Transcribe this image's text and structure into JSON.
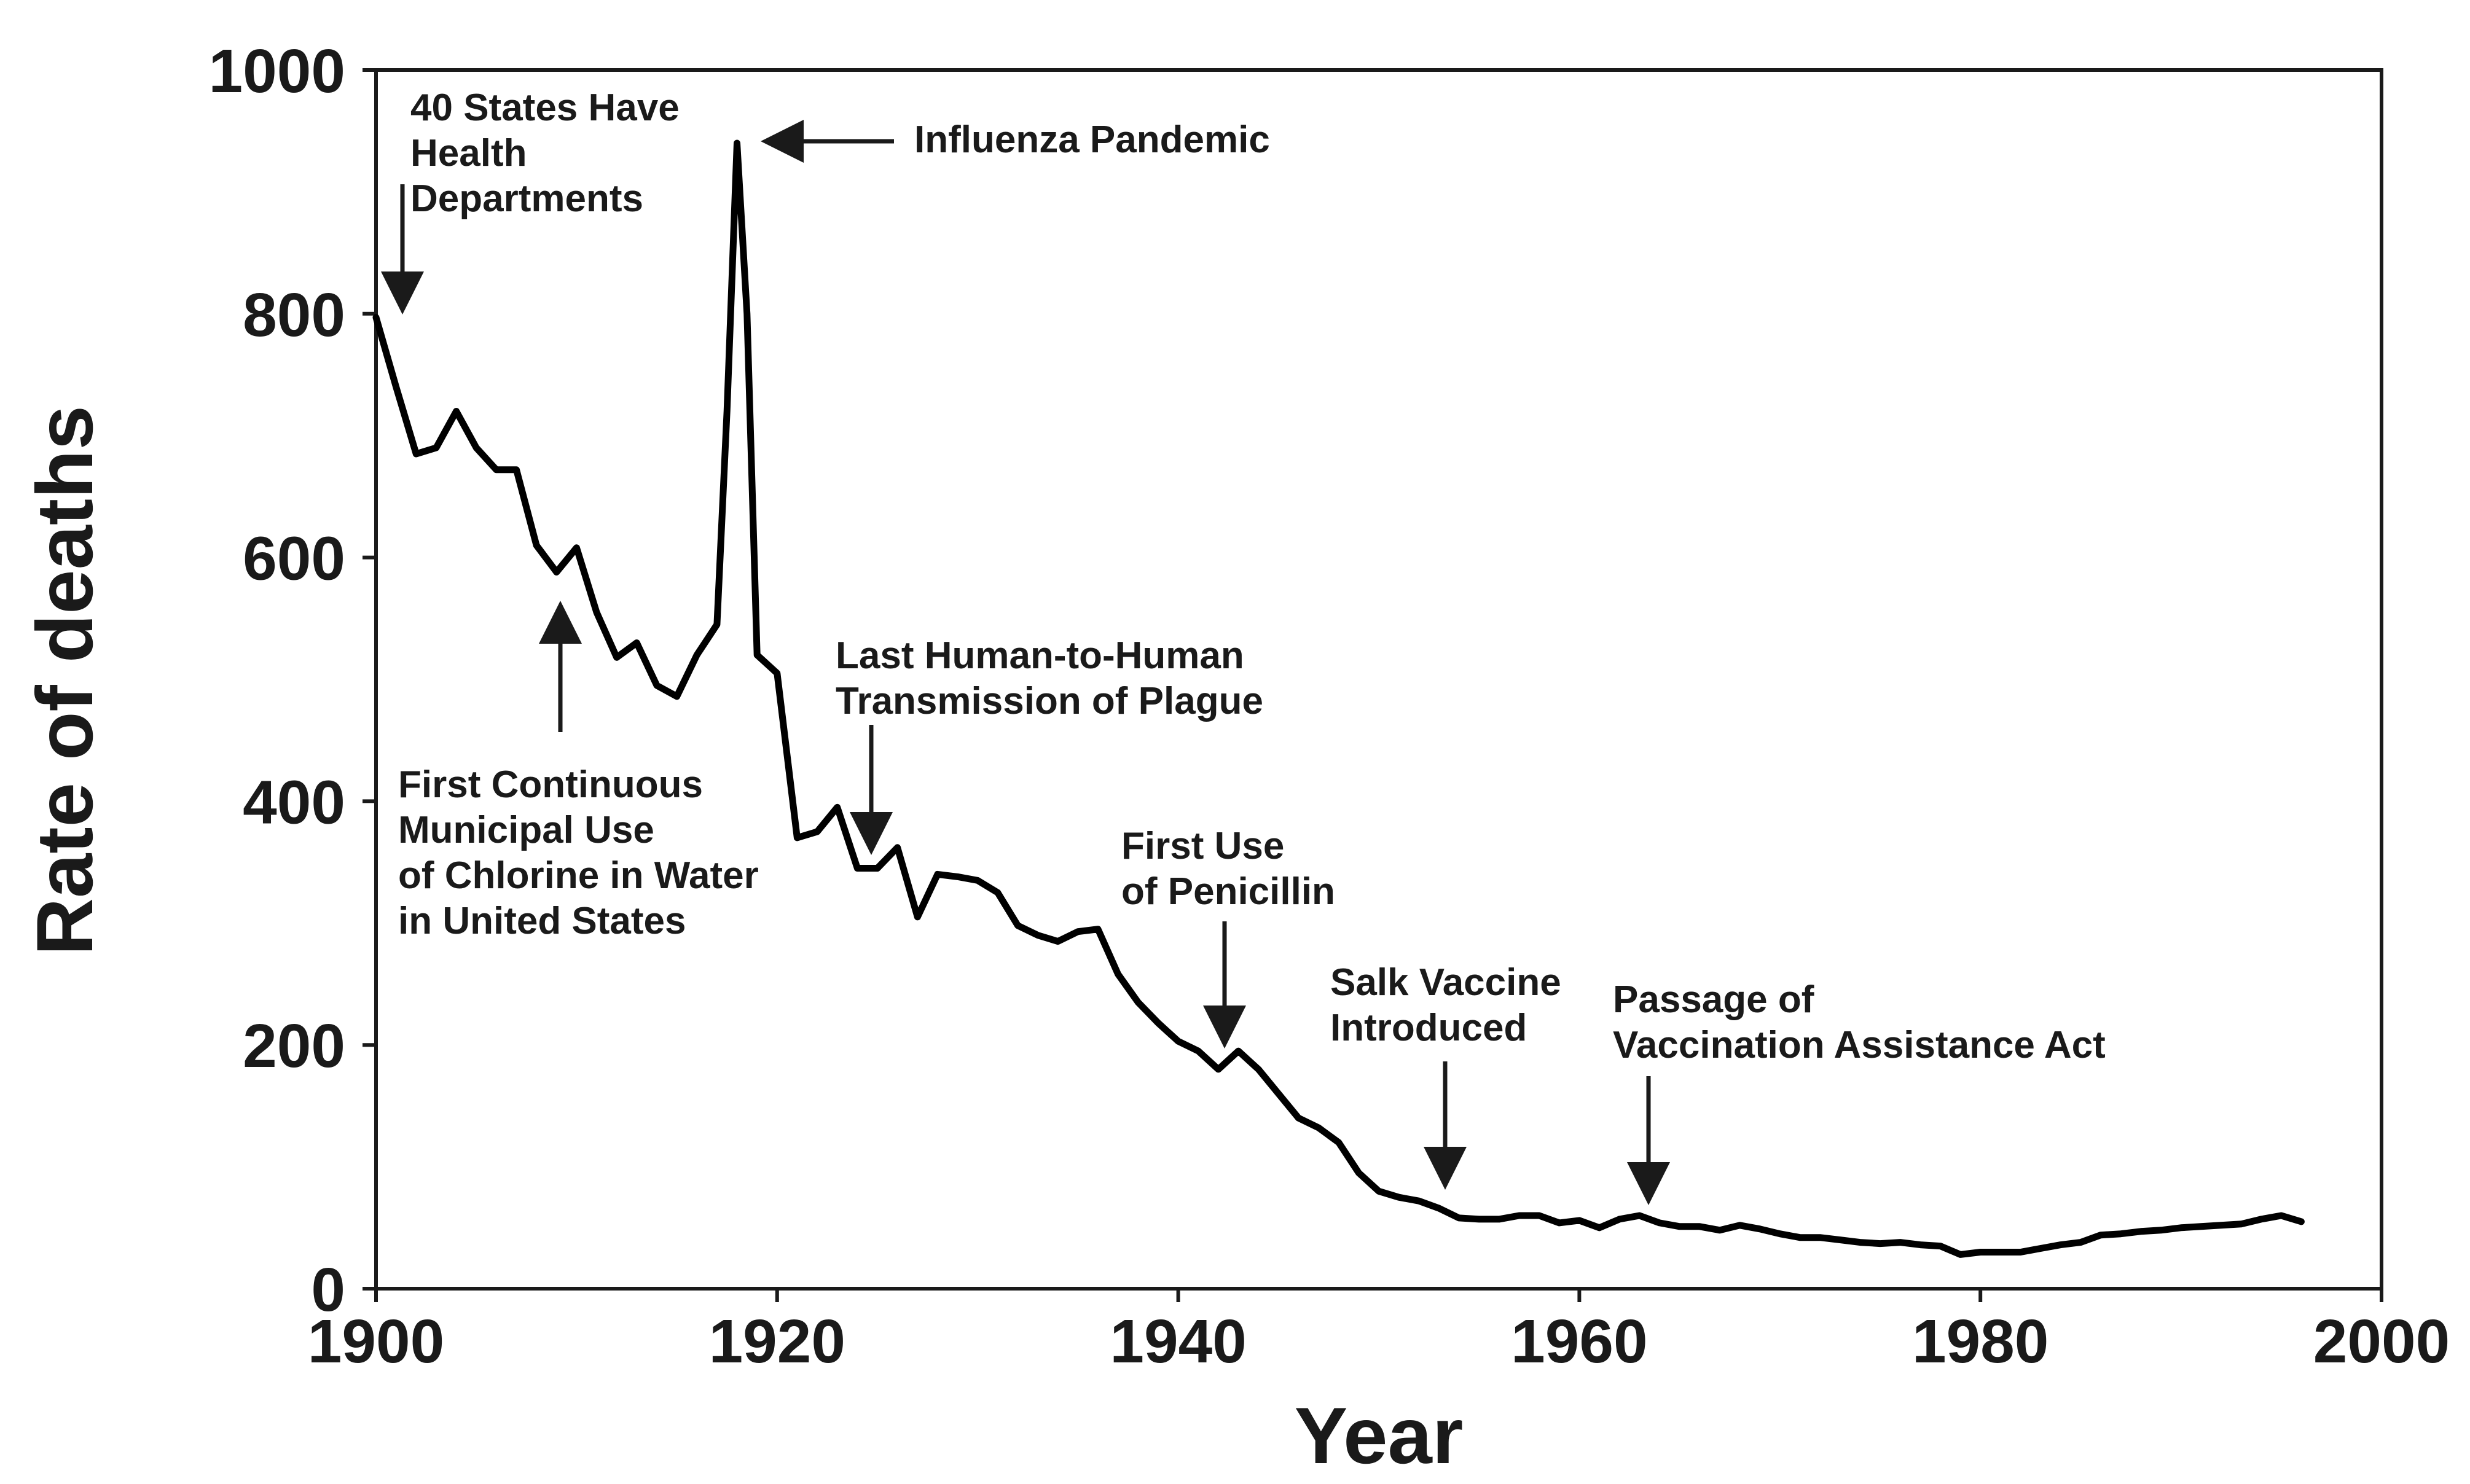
{
  "chart_data": {
    "type": "line",
    "title": "",
    "xlabel": "Year",
    "ylabel": "Rate of deaths",
    "xlim": [
      1900,
      2000
    ],
    "ylim": [
      0,
      1000
    ],
    "xticks": [
      1900,
      1920,
      1940,
      1960,
      1980,
      2000
    ],
    "yticks": [
      0,
      200,
      400,
      600,
      800,
      1000
    ],
    "grid": false,
    "line_color": "#000000",
    "series": [
      {
        "x": [
          1900,
          1901,
          1902,
          1903,
          1904,
          1905,
          1906,
          1907,
          1908,
          1909,
          1910,
          1911,
          1912,
          1913,
          1914,
          1915,
          1916,
          1917,
          1917.5,
          1918,
          1918.5,
          1919,
          1920,
          1921,
          1922,
          1923,
          1924,
          1925,
          1926,
          1927,
          1928,
          1929,
          1930,
          1931,
          1932,
          1933,
          1934,
          1935,
          1936,
          1937,
          1938,
          1939,
          1940,
          1941,
          1942,
          1943,
          1944,
          1945,
          1946,
          1947,
          1948,
          1949,
          1950,
          1951,
          1952,
          1953,
          1954,
          1955,
          1956,
          1957,
          1958,
          1959,
          1960,
          1961,
          1962,
          1963,
          1964,
          1965,
          1966,
          1967,
          1968,
          1969,
          1970,
          1971,
          1972,
          1973,
          1974,
          1975,
          1976,
          1977,
          1978,
          1979,
          1980,
          1981,
          1982,
          1983,
          1984,
          1985,
          1986,
          1987,
          1988,
          1989,
          1990,
          1991,
          1992,
          1993,
          1994,
          1995,
          1996
        ],
        "values": [
          797,
          740,
          685,
          690,
          720,
          690,
          672,
          672,
          610,
          588,
          608,
          555,
          518,
          530,
          495,
          486,
          520,
          545,
          720,
          940,
          800,
          520,
          505,
          370,
          375,
          395,
          345,
          345,
          362,
          305,
          340,
          338,
          335,
          325,
          298,
          290,
          285,
          293,
          295,
          258,
          235,
          218,
          203,
          195,
          180,
          195,
          180,
          160,
          140,
          132,
          120,
          95,
          80,
          75,
          72,
          66,
          58,
          57,
          57,
          60,
          60,
          54,
          56,
          50,
          57,
          60,
          54,
          51,
          51,
          48,
          52,
          49,
          45,
          42,
          42,
          40,
          38,
          37,
          38,
          36,
          35,
          28,
          30,
          30,
          30,
          33,
          36,
          38,
          44,
          45,
          47,
          48,
          50,
          51,
          52,
          53,
          57,
          60,
          55
        ]
      }
    ],
    "annotations": [
      {
        "lines": [
          "40 States Have",
          "Health",
          "Departments"
        ],
        "year": 1901,
        "arrow": "down"
      },
      {
        "lines": [
          "Influenza Pandemic"
        ],
        "year": 1918,
        "arrow": "left"
      },
      {
        "lines": [
          "First Continuous",
          "Municipal Use",
          "of Chlorine in Water",
          "in United States"
        ],
        "year": 1908,
        "arrow": "up"
      },
      {
        "lines": [
          "Last Human-to-Human",
          "Transmission of Plague"
        ],
        "year": 1924,
        "arrow": "down"
      },
      {
        "lines": [
          "First Use",
          "of Penicillin"
        ],
        "year": 1942,
        "arrow": "down"
      },
      {
        "lines": [
          "Salk Vaccine",
          "Introduced"
        ],
        "year": 1954,
        "arrow": "down"
      },
      {
        "lines": [
          "Passage of",
          "Vaccination Assistance Act"
        ],
        "year": 1964,
        "arrow": "down"
      }
    ]
  }
}
